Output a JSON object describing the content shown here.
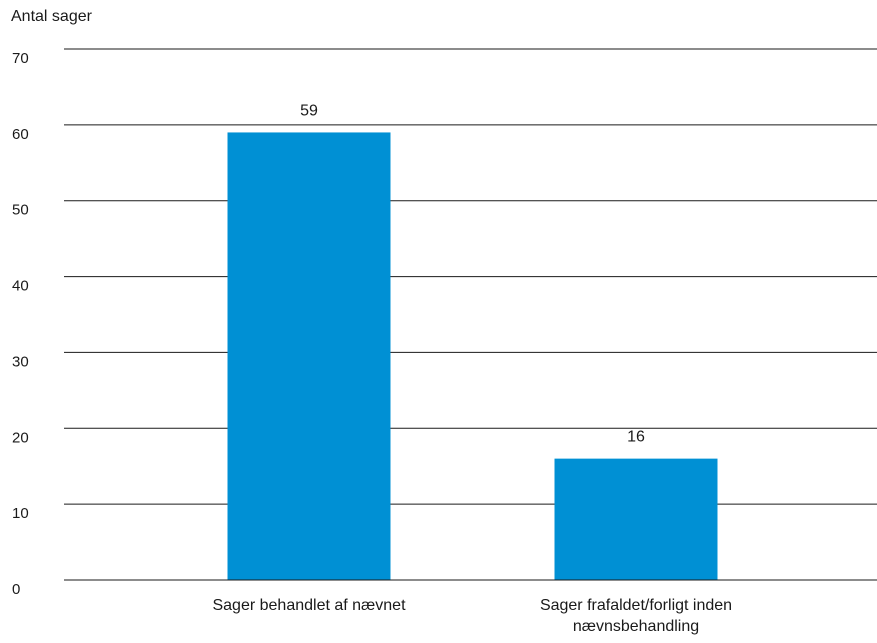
{
  "chart_data": {
    "type": "bar",
    "title": "",
    "xlabel": "",
    "ylabel": "Antal sager",
    "categories": [
      "Sager behandlet af nævnet",
      "Sager frafaldet/forligt inden nævnsbehandling"
    ],
    "category_lines": [
      [
        "Sager behandlet af nævnet"
      ],
      [
        "Sager frafaldet/forligt inden",
        "nævnsbehandling"
      ]
    ],
    "values": [
      59,
      16
    ],
    "data_labels": [
      "59",
      "16"
    ],
    "ylim": [
      0,
      70
    ],
    "yticks": [
      0,
      10,
      20,
      30,
      40,
      50,
      60,
      70
    ],
    "ytick_labels": [
      "0",
      "10",
      "20",
      "30",
      "40",
      "50",
      "60",
      "70"
    ],
    "grid": true,
    "legend": "none",
    "colors": {
      "bar": "#0090d4",
      "grid": "#1a1a1a",
      "text": "#1a1a1a"
    }
  }
}
